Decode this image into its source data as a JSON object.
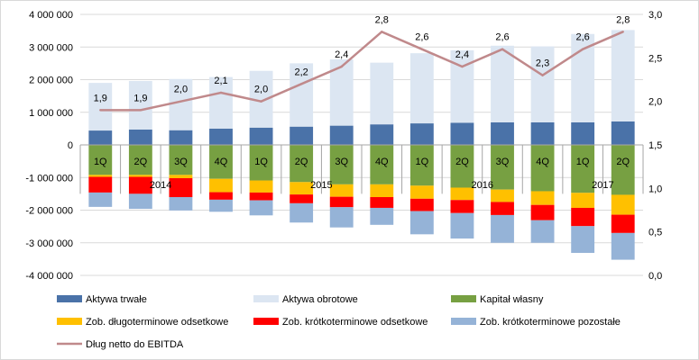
{
  "chart_data": {
    "type": "bar",
    "subtype": "stacked-bar-with-line",
    "quarters": [
      "1Q",
      "2Q",
      "3Q",
      "4Q",
      "1Q",
      "2Q",
      "3Q",
      "4Q",
      "1Q",
      "2Q",
      "3Q",
      "4Q",
      "1Q",
      "2Q"
    ],
    "years": [
      {
        "label": "2014",
        "start": 0,
        "end": 3
      },
      {
        "label": "2015",
        "start": 4,
        "end": 7
      },
      {
        "label": "2016",
        "start": 8,
        "end": 11
      },
      {
        "label": "2017",
        "start": 12,
        "end": 13
      }
    ],
    "y_left": {
      "min": -4000000,
      "max": 4000000,
      "step": 1000000,
      "tick_labels": [
        "4 000 000",
        "3 000 000",
        "2 000 000",
        "1 000 000",
        "0",
        "-1 000 000",
        "-2 000 000",
        "-3 000 000",
        "-4 000 000"
      ]
    },
    "y_right": {
      "min": 0,
      "max": 3.0,
      "step": 0.5,
      "tick_labels": [
        "3,0",
        "2,5",
        "2,0",
        "1,5",
        "1,0",
        "0,5",
        "0,0"
      ]
    },
    "grid": true,
    "legend_position": "bottom",
    "series": [
      {
        "name": "Aktywa trwałe",
        "color": "#4a72a8",
        "axis": "left",
        "stack": "positive",
        "values": [
          440000,
          470000,
          450000,
          500000,
          530000,
          560000,
          590000,
          630000,
          660000,
          680000,
          690000,
          690000,
          690000,
          720000
        ]
      },
      {
        "name": "Aktywa obrotowe",
        "color": "#dce6f2",
        "axis": "left",
        "stack": "positive",
        "values": [
          1460000,
          1490000,
          1570000,
          1580000,
          1740000,
          1940000,
          2030000,
          1890000,
          2150000,
          2220000,
          2350000,
          2330000,
          2710000,
          2800000
        ]
      },
      {
        "name": "Kapitał własny",
        "color": "#77a042",
        "axis": "left",
        "stack": "negative",
        "values": [
          -920000,
          -920000,
          -920000,
          -1040000,
          -1090000,
          -1140000,
          -1210000,
          -1210000,
          -1250000,
          -1310000,
          -1370000,
          -1420000,
          -1470000,
          -1530000
        ]
      },
      {
        "name": "Zob. długoterminowe odsetkowe",
        "color": "#ffc000",
        "axis": "left",
        "stack": "negative",
        "values": [
          -60000,
          -60000,
          -100000,
          -410000,
          -370000,
          -380000,
          -380000,
          -390000,
          -400000,
          -380000,
          -380000,
          -420000,
          -460000,
          -610000
        ]
      },
      {
        "name": "Zob. krótkoterminowe odsetkowe",
        "color": "#ff0000",
        "axis": "left",
        "stack": "negative",
        "values": [
          -480000,
          -520000,
          -580000,
          -230000,
          -240000,
          -270000,
          -320000,
          -330000,
          -380000,
          -400000,
          -400000,
          -470000,
          -560000,
          -560000
        ]
      },
      {
        "name": "Zob. krótkoterminowe pozostałe",
        "color": "#95b3d7",
        "axis": "left",
        "stack": "negative",
        "values": [
          -440000,
          -460000,
          -410000,
          -370000,
          -460000,
          -590000,
          -620000,
          -520000,
          -710000,
          -780000,
          -850000,
          -690000,
          -820000,
          -820000
        ]
      },
      {
        "name": "Dług netto do EBITDA",
        "color": "#c0898b",
        "axis": "right",
        "type": "line",
        "values": [
          1.9,
          1.9,
          2.0,
          2.1,
          2.0,
          2.2,
          2.4,
          2.8,
          2.6,
          2.4,
          2.6,
          2.3,
          2.6,
          2.8
        ],
        "labels": [
          "1,9",
          "1,9",
          "2,0",
          "2,1",
          "2,0",
          "2,2",
          "2,4",
          "2,8",
          "2,6",
          "2,4",
          "2,6",
          "2,3",
          "2,6",
          "2,8"
        ]
      }
    ]
  }
}
